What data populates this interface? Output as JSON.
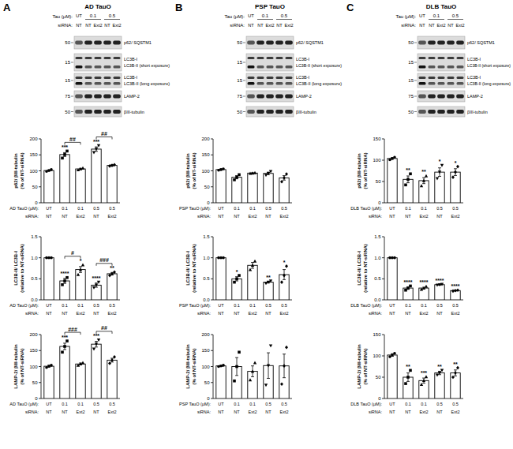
{
  "panels": [
    {
      "letter": "A",
      "title": "AD TauO",
      "blot": {
        "tau_label": "Tau (μM):",
        "tau_groups": [
          "UT",
          "0.1",
          "0.5"
        ],
        "sirna_label": "siRNA:",
        "sirna": [
          "NT",
          "NT",
          "Ext2",
          "NT",
          "Ext2"
        ],
        "rows": [
          {
            "mw": "50",
            "labels": [
              "p62/ SQSTM1"
            ]
          },
          {
            "mw": "15",
            "labels": [
              "LC3B-I",
              "LC3B-II (short exposure)"
            ]
          },
          {
            "mw": "15",
            "labels": [
              "LC3B-I",
              "LC3B-II (long exposure)"
            ]
          },
          {
            "mw": "75",
            "labels": [
              "LAMP-2"
            ]
          },
          {
            "mw": "50",
            "labels": [
              "βIII-tubulin"
            ]
          }
        ]
      }
    },
    {
      "letter": "B",
      "title": "PSP TauO",
      "blot": {
        "tau_label": "Tau (μM):",
        "tau_groups": [
          "UT",
          "0.1",
          "0.5"
        ],
        "sirna_label": "siRNA:",
        "sirna": [
          "NT",
          "NT",
          "Ext2",
          "NT",
          "Ext2"
        ],
        "rows": [
          {
            "mw": "50",
            "labels": [
              "p62/ SQSTM1"
            ]
          },
          {
            "mw": "15",
            "labels": [
              "LC3B-I",
              "LC3B-II (short exposure)"
            ]
          },
          {
            "mw": "15",
            "labels": [
              "LC3B-I",
              "LC3B-II (long exposure)"
            ]
          },
          {
            "mw": "75",
            "labels": [
              "LAMP-2"
            ]
          },
          {
            "mw": "50",
            "labels": [
              "βIII-tubulin"
            ]
          }
        ]
      }
    },
    {
      "letter": "C",
      "title": "DLB TauO",
      "blot": {
        "tau_label": "Tau (μM):",
        "tau_groups": [
          "UT",
          "0.1",
          "0.5"
        ],
        "sirna_label": "siRNA:",
        "sirna": [
          "NT",
          "NT",
          "Ext2",
          "NT",
          "Ext2"
        ],
        "rows": [
          {
            "mw": "50",
            "labels": [
              "p62/ SQSTM1"
            ]
          },
          {
            "mw": "15",
            "labels": [
              "LC3B-I",
              "LC3B-II (short exposure)"
            ]
          },
          {
            "mw": "15",
            "labels": [
              "LC3B-I",
              "LC3B-II (long exposure)"
            ]
          },
          {
            "mw": "75",
            "labels": [
              "LAMP-2"
            ]
          },
          {
            "mw": "50",
            "labels": [
              "βIII-tubulin"
            ]
          }
        ]
      }
    }
  ],
  "chart_data": [
    {
      "type": "bar",
      "y_label": [
        "p62/ βIII-tubulin",
        "(% of NT-siRNA)"
      ],
      "x_label": "AD TauO (μM):",
      "categories": [
        "UT",
        "0.1",
        "0.1",
        "0.5",
        "0.5"
      ],
      "sub_label": "siRNA:",
      "categories_sub": [
        "NT",
        "NT",
        "Ext2",
        "NT",
        "Ext2"
      ],
      "color": "#ffffff",
      "ylim": [
        0,
        200
      ],
      "yticks": [
        0,
        50,
        100,
        150,
        200
      ],
      "values": [
        101,
        151,
        106,
        168,
        117
      ],
      "errors": [
        2,
        6,
        2,
        7,
        2
      ],
      "points": [
        [
          98,
          101,
          104
        ],
        [
          140,
          151,
          162
        ],
        [
          103,
          106,
          109
        ],
        [
          157,
          168,
          179
        ],
        [
          115,
          117,
          119
        ]
      ],
      "annotations": [
        null,
        "***",
        null,
        "***",
        null
      ],
      "brackets": [
        {
          "from": 1,
          "to": 2,
          "label": "##"
        },
        {
          "from": 3,
          "to": 4,
          "label": "##"
        }
      ]
    },
    {
      "type": "bar",
      "y_label": [
        "LC3B-II/ LC3B-I",
        "(relative to NT-siRNA)"
      ],
      "x_label": "AD TauO (μM):",
      "categories": [
        "UT",
        "0.1",
        "0.1",
        "0.5",
        "0.5"
      ],
      "sub_label": "siRNA:",
      "categories_sub": [
        "NT",
        "NT",
        "Ext2",
        "NT",
        "Ext2"
      ],
      "color": "#ffffff",
      "ylim": [
        0,
        1.5
      ],
      "yticks": [
        {
          "value": 0,
          "label": "0.0"
        },
        {
          "value": 0.5,
          "label": "0.5"
        },
        {
          "value": 1,
          "label": "1.0"
        },
        {
          "value": 1.5,
          "label": "1.5"
        }
      ],
      "values": [
        1.0,
        0.45,
        0.72,
        0.35,
        0.62
      ],
      "errors": [
        0,
        0.06,
        0.07,
        0.05,
        0.03
      ],
      "points": [
        [
          1,
          1,
          1
        ],
        [
          0.36,
          0.45,
          0.53
        ],
        [
          0.6,
          0.72,
          0.83
        ],
        [
          0.29,
          0.35,
          0.42
        ],
        [
          0.58,
          0.62,
          0.66
        ]
      ],
      "annotations": [
        null,
        "****",
        "*",
        "****",
        "**"
      ],
      "brackets": [
        {
          "from": 1,
          "to": 2,
          "label": "#"
        },
        {
          "from": 3,
          "to": 4,
          "label": "###"
        }
      ]
    },
    {
      "type": "bar",
      "y_label": [
        "LAMP-2/ βIII-tubulin",
        "(% of NT-siRNA)"
      ],
      "x_label": "AD TauO (μM):",
      "categories": [
        "UT",
        "0.1",
        "0.1",
        "0.5",
        "0.5"
      ],
      "sub_label": "siRNA:",
      "categories_sub": [
        "NT",
        "NT",
        "Ext2",
        "NT",
        "Ext2"
      ],
      "color": "#ffffff",
      "ylim": [
        0,
        200
      ],
      "yticks": [
        0,
        50,
        100,
        150,
        200
      ],
      "values": [
        101,
        163,
        108,
        170,
        120
      ],
      "errors": [
        3,
        10,
        3,
        9,
        6
      ],
      "points": [
        [
          97,
          101,
          104
        ],
        [
          145,
          163,
          180
        ],
        [
          104,
          108,
          112
        ],
        [
          155,
          170,
          183
        ],
        [
          110,
          120,
          130
        ]
      ],
      "annotations": [
        null,
        "***",
        null,
        "***",
        null
      ],
      "brackets": [
        {
          "from": 1,
          "to": 2,
          "label": "###"
        },
        {
          "from": 3,
          "to": 4,
          "label": "##"
        }
      ]
    },
    {
      "type": "bar",
      "y_label": [
        "p62/ βIII-tubulin",
        "(% of NT-siRNA)"
      ],
      "x_label": "PSP TauO (μM):",
      "categories": [
        "UT",
        "0.1",
        "0.1",
        "0.5",
        "0.5"
      ],
      "sub_label": "siRNA:",
      "categories_sub": [
        "NT",
        "NT",
        "Ext2",
        "NT",
        "Ext2"
      ],
      "color": "#ffffff",
      "ylim": [
        0,
        200
      ],
      "yticks": [
        0,
        50,
        100,
        150,
        200
      ],
      "values": [
        104,
        80,
        93,
        92,
        78
      ],
      "errors": [
        2,
        5,
        1,
        4,
        7
      ],
      "points": [
        [
          102,
          104,
          106
        ],
        [
          72,
          80,
          88
        ],
        [
          92,
          93,
          94
        ],
        [
          86,
          92,
          98
        ],
        [
          66,
          78,
          90
        ]
      ],
      "annotations": [
        null,
        null,
        null,
        null,
        null
      ],
      "brackets": []
    },
    {
      "type": "bar",
      "y_label": [
        "LC3B-II/ LC3B-I",
        "(relative to NT-siRNA)"
      ],
      "x_label": "PSP TauO (μM):",
      "categories": [
        "UT",
        "0.1",
        "0.1",
        "0.5",
        "0.5"
      ],
      "sub_label": "siRNA:",
      "categories_sub": [
        "NT",
        "NT",
        "Ext2",
        "NT",
        "Ext2"
      ],
      "color": "#ffffff",
      "ylim": [
        0,
        1.5
      ],
      "yticks": [
        {
          "value": 0,
          "label": "0.0"
        },
        {
          "value": 0.5,
          "label": "0.5"
        },
        {
          "value": 1,
          "label": "1.0"
        },
        {
          "value": 1.5,
          "label": "1.5"
        }
      ],
      "values": [
        1.0,
        0.5,
        0.82,
        0.42,
        0.6
      ],
      "errors": [
        0,
        0.05,
        0.07,
        0.02,
        0.12
      ],
      "points": [
        [
          1,
          1,
          1
        ],
        [
          0.42,
          0.5,
          0.58
        ],
        [
          0.72,
          0.82,
          0.92
        ],
        [
          0.39,
          0.42,
          0.45
        ],
        [
          0.42,
          0.58,
          0.8
        ]
      ],
      "annotations": [
        null,
        "*",
        null,
        "**",
        "*"
      ],
      "brackets": []
    },
    {
      "type": "bar",
      "y_label": [
        "LAMP-2/ βIII-tubulin",
        "(% of NT-siRNA)"
      ],
      "x_label": "PSP TauO (μM):",
      "categories": [
        "UT",
        "0.1",
        "0.1",
        "0.5",
        "0.5"
      ],
      "sub_label": "siRNA:",
      "categories_sub": [
        "NT",
        "NT",
        "Ext2",
        "NT",
        "Ext2"
      ],
      "color": "#ffffff",
      "ylim": [
        0,
        200
      ],
      "yticks": [
        0,
        50,
        100,
        150,
        200
      ],
      "values": [
        102,
        100,
        85,
        103,
        102
      ],
      "errors": [
        2,
        28,
        17,
        40,
        37
      ],
      "points": [
        [
          100,
          102,
          104
        ],
        [
          55,
          100,
          145
        ],
        [
          58,
          85,
          112
        ],
        [
          42,
          103,
          165
        ],
        [
          45,
          102,
          160
        ]
      ],
      "annotations": [
        null,
        null,
        null,
        null,
        null
      ],
      "brackets": []
    },
    {
      "type": "bar",
      "y_label": [
        "p62/ βIII-tubulin",
        "(% of NT-siRNA)"
      ],
      "x_label": "DLB TauO (μM):",
      "categories": [
        "UT",
        "0.1",
        "0.1",
        "0.5",
        "0.5"
      ],
      "sub_label": "siRNA:",
      "categories_sub": [
        "NT",
        "NT",
        "Ext2",
        "NT",
        "Ext2"
      ],
      "color": "#ffffff",
      "ylim": [
        0,
        150
      ],
      "yticks": [
        0,
        50,
        100,
        150
      ],
      "values": [
        104,
        55,
        52,
        72,
        72
      ],
      "errors": [
        2,
        8,
        7,
        10,
        8
      ],
      "points": [
        [
          101,
          104,
          107
        ],
        [
          42,
          55,
          68
        ],
        [
          40,
          52,
          63
        ],
        [
          57,
          72,
          88
        ],
        [
          60,
          72,
          85
        ]
      ],
      "annotations": [
        null,
        "**",
        "**",
        "*",
        "*"
      ],
      "brackets": []
    },
    {
      "type": "bar",
      "y_label": [
        "LC3B-II/ LC3B-I",
        "(relative to NT-siRNA)"
      ],
      "x_label": "DLB TauO (μM):",
      "categories": [
        "UT",
        "0.1",
        "0.1",
        "0.5",
        "0.5"
      ],
      "sub_label": "siRNA:",
      "categories_sub": [
        "NT",
        "NT",
        "Ext2",
        "NT",
        "Ext2"
      ],
      "color": "#ffffff",
      "ylim": [
        0,
        1.5
      ],
      "yticks": [
        {
          "value": 0,
          "label": "0.0"
        },
        {
          "value": 0.5,
          "label": "0.5"
        },
        {
          "value": 1,
          "label": "1.0"
        },
        {
          "value": 1.5,
          "label": "1.5"
        }
      ],
      "values": [
        1.0,
        0.28,
        0.28,
        0.36,
        0.22
      ],
      "errors": [
        0,
        0.03,
        0.02,
        0.01,
        0.01
      ],
      "points": [
        [
          1,
          1,
          1
        ],
        [
          0.23,
          0.28,
          0.33
        ],
        [
          0.25,
          0.28,
          0.32
        ],
        [
          0.35,
          0.36,
          0.37
        ],
        [
          0.21,
          0.22,
          0.23
        ]
      ],
      "annotations": [
        null,
        "****",
        "****",
        "****",
        "****"
      ],
      "brackets": []
    },
    {
      "type": "bar",
      "y_label": [
        "LAMP-2/ βIII-tubulin",
        "(% of NT-siRNA)"
      ],
      "x_label": "DLB TauO (μM):",
      "categories": [
        "UT",
        "0.1",
        "0.1",
        "0.5",
        "0.5"
      ],
      "sub_label": "siRNA:",
      "categories_sub": [
        "NT",
        "NT",
        "Ext2",
        "NT",
        "Ext2"
      ],
      "color": "#ffffff",
      "ylim": [
        0,
        150
      ],
      "yticks": [
        0,
        50,
        100,
        150
      ],
      "values": [
        102,
        50,
        42,
        60,
        60
      ],
      "errors": [
        3,
        10,
        6,
        4,
        7
      ],
      "points": [
        [
          98,
          102,
          106
        ],
        [
          35,
          50,
          66
        ],
        [
          33,
          42,
          51
        ],
        [
          55,
          60,
          66
        ],
        [
          50,
          60,
          72
        ]
      ],
      "annotations": [
        null,
        "**",
        "***",
        "**",
        "**"
      ],
      "brackets": []
    }
  ]
}
